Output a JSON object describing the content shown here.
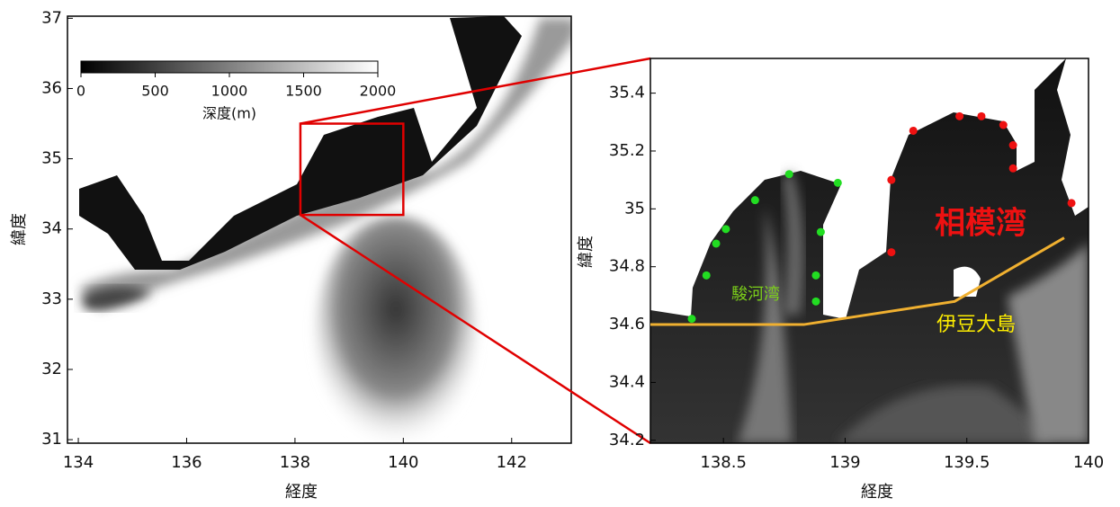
{
  "chart_data": [
    {
      "type": "map",
      "xlabel": "経度",
      "ylabel": "緯度",
      "xlim": [
        133.8,
        143.1
      ],
      "ylim": [
        30.95,
        37.03
      ],
      "xticks": [
        134,
        136,
        138,
        140,
        142
      ],
      "yticks": [
        31,
        32,
        33,
        34,
        35,
        36,
        37
      ],
      "colorbar": {
        "label": "深度(m)",
        "lim": [
          0,
          2000
        ],
        "ticks": [
          0,
          500,
          1000,
          1500,
          2000
        ]
      },
      "inset_box": {
        "color": "#e00000",
        "x": [
          138.1,
          140
        ],
        "y": [
          34.2,
          35.5
        ]
      }
    },
    {
      "type": "map",
      "xlabel": "経度",
      "ylabel": "緯度",
      "xlim": [
        138.2,
        140
      ],
      "ylim": [
        34.19,
        35.52
      ],
      "xticks": [
        138.5,
        139,
        139.5,
        140
      ],
      "yticks": [
        34.2,
        34.4,
        34.6,
        34.8,
        35,
        35.2,
        35.4
      ],
      "series": [
        {
          "color": "#22dd22",
          "x": [
            138.37,
            138.43,
            138.47,
            138.51,
            138.63,
            138.77,
            138.97,
            138.9,
            138.88,
            138.88
          ],
          "y": [
            34.62,
            34.77,
            34.88,
            34.93,
            35.03,
            35.12,
            35.09,
            34.92,
            34.77,
            34.68
          ]
        },
        {
          "color": "#ee1111",
          "x": [
            139.19,
            139.28,
            139.47,
            139.56,
            139.65,
            139.69,
            139.69,
            139.93,
            139.19
          ],
          "y": [
            35.1,
            35.27,
            35.32,
            35.32,
            35.29,
            35.22,
            35.14,
            35.02,
            34.85
          ]
        }
      ],
      "route": {
        "color": "#f0b030",
        "x": [
          138.2,
          138.83,
          139.45,
          139.9
        ],
        "y": [
          34.6,
          34.6,
          34.68,
          34.9
        ]
      },
      "annotations": [
        {
          "text": "駿河湾",
          "color": "#7ccf1a"
        },
        {
          "text": "相模湾",
          "color": "#ee1111"
        },
        {
          "text": "伊豆大島",
          "color": "#ffee00"
        }
      ]
    }
  ]
}
